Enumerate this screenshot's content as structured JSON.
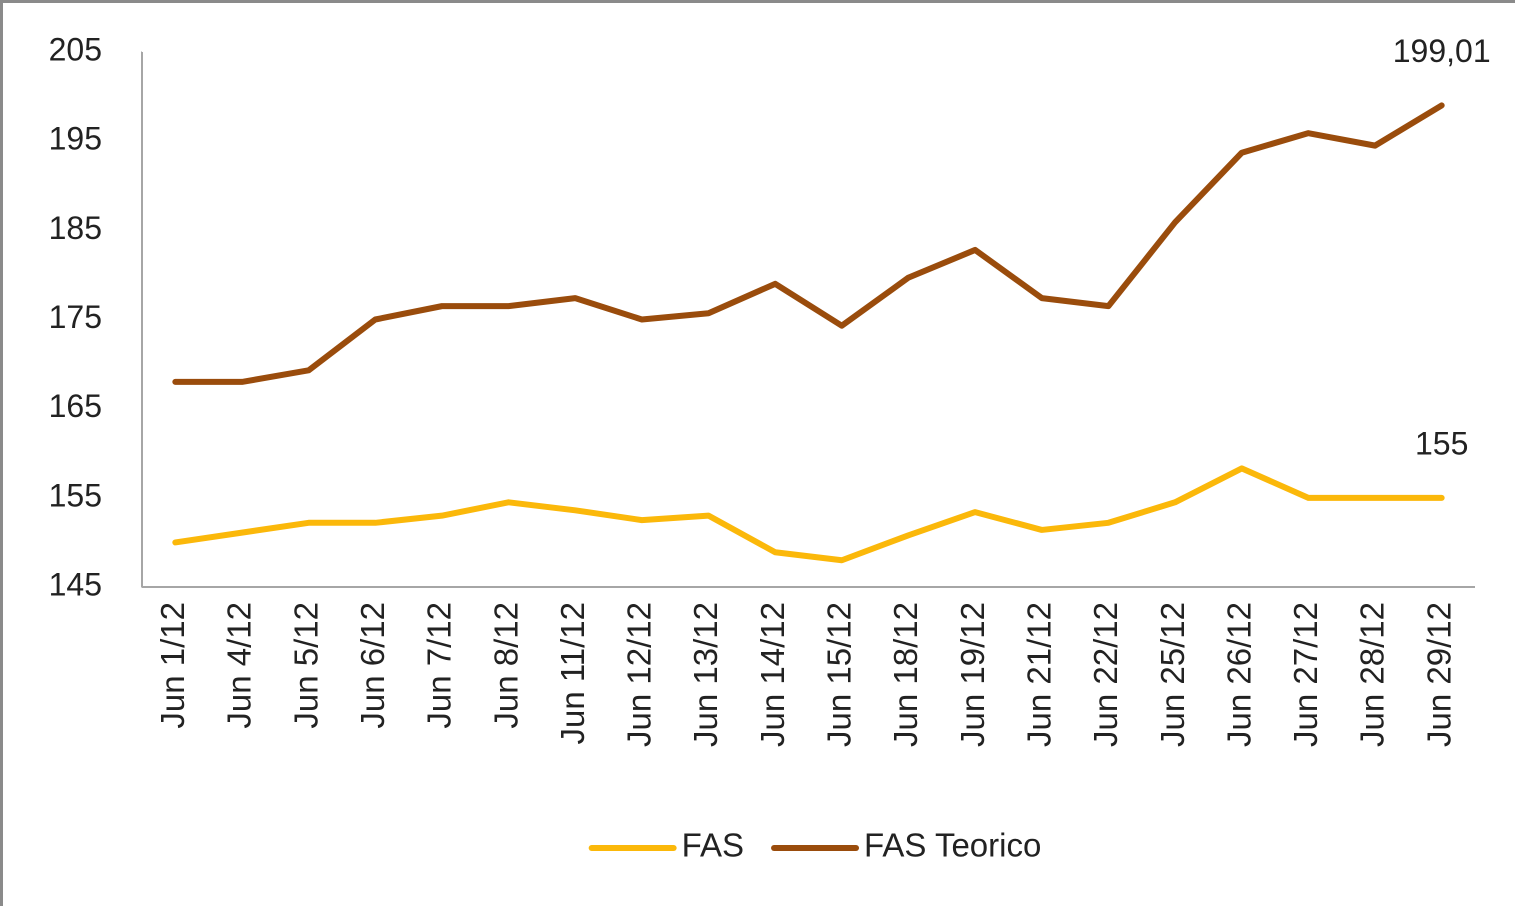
{
  "chart_data": {
    "type": "line",
    "categories": [
      "Jun 1/12",
      "Jun 4/12",
      "Jun 5/12",
      "Jun 6/12",
      "Jun 7/12",
      "Jun 8/12",
      "Jun 11/12",
      "Jun 12/12",
      "Jun 13/12",
      "Jun 14/12",
      "Jun 15/12",
      "Jun 18/12",
      "Jun 19/12",
      "Jun 21/12",
      "Jun 22/12",
      "Jun 25/12",
      "Jun 26/12",
      "Jun 27/12",
      "Jun 28/12",
      "Jun 29/12"
    ],
    "series": [
      {
        "name": "FAS",
        "color": "#fbb80a",
        "values": [
          150.0,
          151.1,
          152.2,
          152.2,
          153.0,
          154.5,
          153.6,
          152.5,
          153.0,
          148.9,
          148.0,
          150.8,
          153.4,
          151.4,
          152.2,
          154.5,
          158.3,
          155,
          155,
          155
        ],
        "value_labels": [
          null,
          null,
          null,
          null,
          null,
          null,
          null,
          null,
          null,
          null,
          null,
          null,
          null,
          null,
          null,
          null,
          null,
          null,
          null,
          "155"
        ]
      },
      {
        "name": "FAS Teorico",
        "color": "#9a4c0c",
        "values": [
          168.0,
          168.0,
          169.3,
          175.0,
          176.5,
          176.5,
          177.4,
          175.0,
          175.7,
          179.0,
          174.3,
          179.7,
          182.8,
          177.4,
          176.5,
          185.9,
          193.7,
          195.9,
          194.5,
          199.01
        ],
        "value_labels": [
          null,
          null,
          null,
          null,
          null,
          null,
          null,
          null,
          null,
          null,
          null,
          null,
          null,
          null,
          null,
          null,
          null,
          null,
          null,
          "199,01"
        ]
      }
    ],
    "ylim": [
      145,
      205
    ],
    "yticks": [
      145,
      155,
      165,
      175,
      185,
      195,
      205
    ],
    "grid": false,
    "legend": "bottom"
  }
}
